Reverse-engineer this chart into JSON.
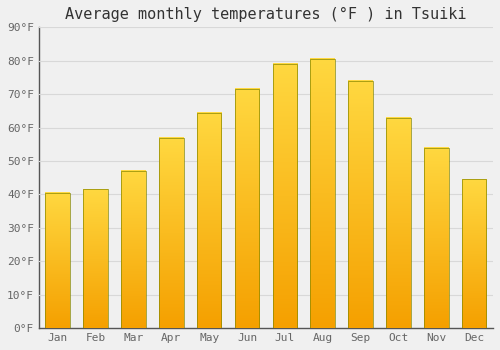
{
  "title": "Average monthly temperatures (°F ) in Tsuiki",
  "months": [
    "Jan",
    "Feb",
    "Mar",
    "Apr",
    "May",
    "Jun",
    "Jul",
    "Aug",
    "Sep",
    "Oct",
    "Nov",
    "Dec"
  ],
  "values": [
    40.5,
    41.5,
    47,
    57,
    64.5,
    71.5,
    79,
    80.5,
    74,
    63,
    54,
    44.5
  ],
  "bar_color_bottom": "#F5A000",
  "bar_color_top": "#FFD840",
  "bar_edge_color": "#888800",
  "ylim": [
    0,
    90
  ],
  "ytick_step": 10,
  "background_color": "#f0f0f0",
  "plot_bg_color": "#f0f0f0",
  "grid_color": "#d8d8d8",
  "title_fontsize": 11,
  "tick_fontsize": 8,
  "tick_color": "#666666",
  "title_color": "#333333"
}
